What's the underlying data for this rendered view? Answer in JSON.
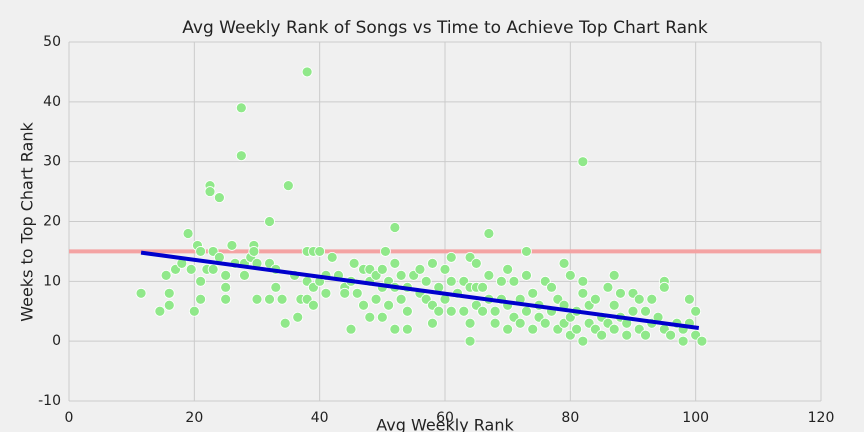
{
  "chart_data": {
    "type": "scatter",
    "title": "Avg Weekly Rank of Songs vs Time to Achieve Top Chart Rank",
    "x_label": "Avg Weekly Rank",
    "y_label": "Weeks to Top Chart Rank",
    "xlim": [
      0,
      120
    ],
    "ylim": [
      -10,
      50
    ],
    "xticks": [
      0,
      20,
      40,
      60,
      80,
      100,
      120
    ],
    "yticks": [
      -10,
      0,
      10,
      20,
      30,
      40,
      50
    ],
    "grid": true,
    "color": "#90e88a",
    "x": [
      11.5,
      14.5,
      15.5,
      16,
      16,
      17,
      18,
      19,
      19.5,
      20,
      20.5,
      21,
      21,
      21,
      22,
      22.5,
      22.5,
      23,
      23,
      24,
      24,
      25,
      25,
      25,
      26,
      26.5,
      27.5,
      27.5,
      28,
      28,
      29,
      29.5,
      29.5,
      30,
      30,
      32,
      32,
      32,
      33,
      33,
      34,
      34.5,
      35,
      36,
      36.5,
      37,
      38,
      38,
      38,
      38,
      39,
      39,
      39,
      40,
      40,
      41,
      41,
      42,
      43,
      44,
      44,
      45,
      45,
      45.5,
      46,
      47,
      47,
      48,
      48,
      48,
      49,
      49,
      50,
      50,
      50,
      50.5,
      51,
      51,
      52,
      52,
      52,
      52,
      53,
      53,
      54,
      54,
      54,
      55,
      56,
      56,
      57,
      57,
      58,
      58,
      58,
      59,
      59,
      60,
      60,
      61,
      61,
      61,
      62,
      63,
      63,
      64,
      64,
      64,
      64,
      65,
      65,
      65,
      66,
      66,
      67,
      67,
      67,
      68,
      68,
      69,
      69,
      70,
      70,
      70,
      71,
      71,
      72,
      72,
      73,
      73,
      73,
      74,
      74,
      75,
      75,
      76,
      76,
      77,
      77,
      78,
      78,
      79,
      79,
      79,
      80,
      80,
      80,
      81,
      81,
      82,
      82,
      82,
      82,
      83,
      83,
      84,
      84,
      85,
      85,
      86,
      86,
      87,
      87,
      87,
      88,
      88,
      89,
      89,
      90,
      90,
      91,
      91,
      92,
      92,
      93,
      93,
      94,
      95,
      95,
      95,
      96,
      97,
      98,
      98,
      99,
      99,
      100,
      100,
      101
    ],
    "y": [
      8,
      5,
      11,
      6,
      8,
      12,
      13,
      18,
      12,
      5,
      16,
      15,
      10,
      7,
      12,
      26,
      25,
      15,
      12,
      24,
      14,
      11,
      9,
      7,
      16,
      13,
      31,
      39,
      13,
      11,
      14,
      16,
      15,
      13,
      7,
      20,
      13,
      7,
      12,
      9,
      7,
      3,
      26,
      11,
      4,
      7,
      45,
      15,
      10,
      7,
      15,
      9,
      6,
      15,
      10,
      11,
      8,
      14,
      11,
      9,
      8,
      10,
      2,
      13,
      8,
      12,
      6,
      12,
      10,
      4,
      11,
      7,
      12,
      9,
      4,
      15,
      10,
      6,
      19,
      13,
      9,
      2,
      11,
      7,
      9,
      5,
      2,
      11,
      12,
      8,
      10,
      7,
      13,
      6,
      3,
      9,
      5,
      12,
      7,
      14,
      10,
      5,
      8,
      10,
      5,
      14,
      9,
      3,
      0,
      13,
      9,
      6,
      9,
      5,
      18,
      11,
      7,
      5,
      3,
      10,
      7,
      12,
      6,
      2,
      10,
      4,
      7,
      3,
      15,
      11,
      5,
      8,
      2,
      6,
      4,
      10,
      3,
      9,
      5,
      7,
      2,
      13,
      6,
      3,
      11,
      4,
      1,
      5,
      2,
      30,
      8,
      10,
      0,
      6,
      3,
      7,
      2,
      4,
      1,
      9,
      3,
      11,
      6,
      2,
      8,
      4,
      3,
      1,
      8,
      5,
      7,
      2,
      5,
      1,
      7,
      3,
      4,
      10,
      9,
      2,
      1,
      3,
      2,
      0,
      7,
      3,
      5,
      1,
      0
    ],
    "fit_line": {
      "x": [
        11.5,
        100.5
      ],
      "y": [
        14.8,
        2.2
      ],
      "color": "#0000cc"
    },
    "reference_line": {
      "y": 15,
      "color": "#f4a3a3"
    }
  }
}
